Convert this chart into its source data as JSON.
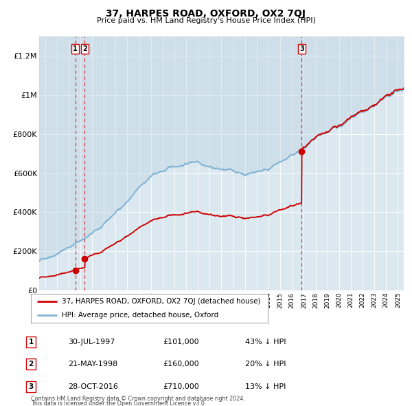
{
  "title": "37, HARPES ROAD, OXFORD, OX2 7QJ",
  "subtitle": "Price paid vs. HM Land Registry's House Price Index (HPI)",
  "legend_line1": "37, HARPES ROAD, OXFORD, OX2 7QJ (detached house)",
  "legend_line2": "HPI: Average price, detached house, Oxford",
  "transactions": [
    {
      "num": 1,
      "date": "30-JUL-1997",
      "price": 101000,
      "pct": "43%",
      "x": 1997.57
    },
    {
      "num": 2,
      "date": "21-MAY-1998",
      "price": 160000,
      "pct": "20%",
      "x": 1998.38
    },
    {
      "num": 3,
      "date": "28-OCT-2016",
      "price": 710000,
      "pct": "13%",
      "x": 2016.83
    }
  ],
  "footer1": "Contains HM Land Registry data © Crown copyright and database right 2024.",
  "footer2": "This data is licensed under the Open Government Licence v3.0.",
  "property_color": "#cc0000",
  "hpi_color": "#7fb3d3",
  "plot_bg": "#dce8f0",
  "ylim": [
    0,
    1300000
  ],
  "xlim_start": 1994.5,
  "xlim_end": 2025.5
}
